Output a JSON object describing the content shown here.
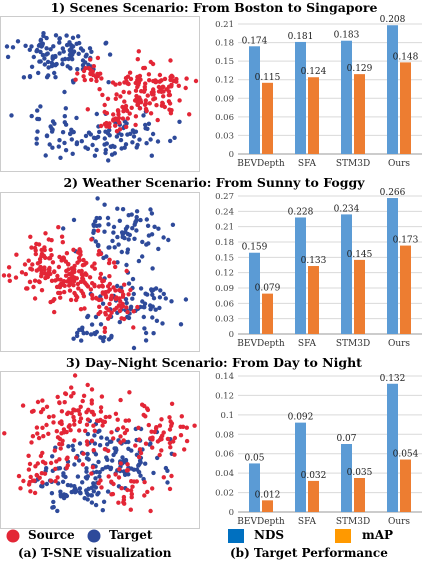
{
  "figure": {
    "panel_titles": [
      "1) Scenes Scenario: From Boston to Singapore",
      "2) Weather Scenario: From Sunny to Foggy",
      "3) Day–Night Scenario: From Day to Night"
    ],
    "tsne_legend": {
      "source": "Source",
      "target": "Target"
    },
    "bar_legend": {
      "nds": "NDS",
      "map": "mAP"
    },
    "captions": {
      "left": "(a) T-SNE visualization",
      "right": "(b) Target Performance"
    },
    "colors": {
      "source": "#e32636",
      "target": "#2e4a9a",
      "nds": "#5b9bd5",
      "map": "#ed7d31"
    }
  },
  "chart_data": [
    {
      "type": "bar",
      "title": "1) Scenes Scenario: From Boston to Singapore",
      "categories": [
        "BEVDepth",
        "SFA",
        "STM3D",
        "Ours"
      ],
      "series": [
        {
          "name": "NDS",
          "values": [
            0.174,
            0.181,
            0.183,
            0.208
          ],
          "labels": [
            "0.174",
            "0.181",
            "0.183",
            "0.208"
          ]
        },
        {
          "name": "mAP",
          "values": [
            0.115,
            0.124,
            0.129,
            0.148
          ],
          "labels": [
            "0.115",
            "0.124",
            "0.129",
            "0.148"
          ]
        }
      ],
      "ylim": [
        0,
        0.21
      ],
      "yticks": [
        "0",
        "0.03",
        "0.06",
        "0.09",
        "0.12",
        "0.15",
        "0.18",
        "0.21"
      ],
      "ytick_values": [
        0,
        0.03,
        0.06,
        0.09,
        0.12,
        0.15,
        0.18,
        0.21
      ],
      "grid": true
    },
    {
      "type": "bar",
      "title": "2) Weather Scenario: From Sunny to Foggy",
      "categories": [
        "BEVDepth",
        "SFA",
        "STM3D",
        "Ours"
      ],
      "series": [
        {
          "name": "NDS",
          "values": [
            0.159,
            0.228,
            0.234,
            0.266
          ],
          "labels": [
            "0.159",
            "0.228",
            "0.234",
            "0.266"
          ]
        },
        {
          "name": "mAP",
          "values": [
            0.079,
            0.133,
            0.145,
            0.173
          ],
          "labels": [
            "0.079",
            "0.133",
            "0.145",
            "0.173"
          ]
        }
      ],
      "ylim": [
        0,
        0.27
      ],
      "yticks": [
        "0",
        "0.03",
        "0.06",
        "0.09",
        "0.12",
        "0.15",
        "0.18",
        "0.21",
        "0.24",
        "0.27"
      ],
      "ytick_values": [
        0,
        0.03,
        0.06,
        0.09,
        0.12,
        0.15,
        0.18,
        0.21,
        0.24,
        0.27
      ],
      "grid": true
    },
    {
      "type": "bar",
      "title": "3) Day–Night Scenario: From Day to Night",
      "categories": [
        "BEVDepth",
        "SFA",
        "STM3D",
        "Ours"
      ],
      "series": [
        {
          "name": "NDS",
          "values": [
            0.05,
            0.092,
            0.07,
            0.132
          ],
          "labels": [
            "0.05",
            "0.092",
            "0.07",
            "0.132"
          ]
        },
        {
          "name": "mAP",
          "values": [
            0.012,
            0.032,
            0.035,
            0.054
          ],
          "labels": [
            "0.012",
            "0.032",
            "0.035",
            "0.054"
          ]
        }
      ],
      "ylim": [
        0,
        0.14
      ],
      "yticks": [
        "0",
        "0.02",
        "0.04",
        "0.06",
        "0.08",
        "0.1",
        "0.12",
        "0.14"
      ],
      "ytick_values": [
        0,
        0.02,
        0.04,
        0.06,
        0.08,
        0.1,
        0.12,
        0.14
      ],
      "grid": true
    },
    {
      "type": "scatter",
      "title": "1) Scenes Scenario: From Boston to Singapore",
      "series": [
        {
          "name": "Source"
        },
        {
          "name": "Target"
        }
      ]
    },
    {
      "type": "scatter",
      "title": "2) Weather Scenario: From Sunny to Foggy",
      "series": [
        {
          "name": "Source"
        },
        {
          "name": "Target"
        }
      ]
    },
    {
      "type": "scatter",
      "title": "3) Day–Night Scenario: From Day to Night",
      "series": [
        {
          "name": "Source"
        },
        {
          "name": "Target"
        }
      ]
    }
  ]
}
